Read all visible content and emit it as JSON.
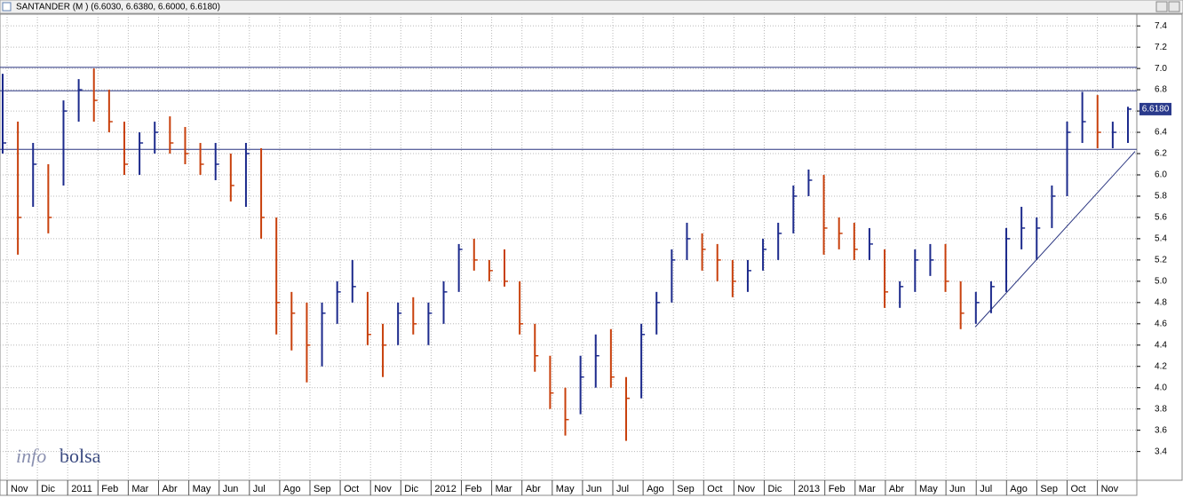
{
  "chart_data": {
    "type": "ohlc",
    "title": "SANTANDER (M ) (6.6030, 6.6380, 6.6000, 6.6180)",
    "logo": [
      "info",
      "bolsa"
    ],
    "categories": [
      "Nov",
      "Dic",
      "2011",
      "Feb",
      "Mar",
      "Abr",
      "May",
      "Jun",
      "Jul",
      "Ago",
      "Sep",
      "Oct",
      "Nov",
      "Dic",
      "2012",
      "Feb",
      "Mar",
      "Abr",
      "May",
      "Jun",
      "Jul",
      "Ago",
      "Sep",
      "Oct",
      "Nov",
      "Dic",
      "2013",
      "Feb",
      "Mar",
      "Abr",
      "May",
      "Jun",
      "Jul",
      "Ago",
      "Sep",
      "Oct",
      "Nov"
    ],
    "high": [
      6.95,
      6.5,
      6.3,
      6.1,
      6.7,
      6.9,
      7.0,
      6.8,
      6.5,
      6.4,
      6.5,
      6.55,
      6.45,
      6.3,
      6.3,
      6.2,
      6.3,
      6.25,
      5.6,
      4.9,
      4.8,
      4.8,
      5.0,
      5.2,
      4.9,
      4.6,
      4.8,
      4.85,
      4.8,
      5.0,
      5.35,
      5.4,
      5.2,
      5.3,
      5.0,
      4.6,
      4.3,
      4.0,
      4.3,
      4.5,
      4.55,
      4.1,
      4.6,
      4.9,
      5.3,
      5.55,
      5.45,
      5.35,
      5.2,
      5.2,
      5.4,
      5.55,
      5.9,
      6.05,
      6.0,
      5.6,
      5.55,
      5.5,
      5.3,
      5.0,
      5.3,
      5.35,
      5.35,
      5.0,
      4.9,
      5.0,
      5.5,
      5.7,
      5.6,
      5.9,
      6.5,
      6.78,
      6.75,
      6.5,
      6.64
    ],
    "low": [
      6.2,
      5.25,
      5.7,
      5.45,
      5.9,
      6.5,
      6.5,
      6.4,
      6.0,
      6.0,
      6.2,
      6.2,
      6.1,
      6.0,
      5.95,
      5.75,
      5.7,
      5.4,
      4.5,
      4.35,
      4.05,
      4.2,
      4.6,
      4.8,
      4.4,
      4.1,
      4.4,
      4.5,
      4.4,
      4.6,
      4.9,
      5.1,
      5.0,
      4.95,
      4.5,
      4.15,
      3.8,
      3.55,
      3.75,
      4.0,
      4.0,
      3.5,
      3.9,
      4.5,
      4.8,
      5.2,
      5.1,
      5.0,
      4.85,
      4.9,
      5.1,
      5.2,
      5.45,
      5.8,
      5.25,
      5.3,
      5.2,
      5.2,
      4.75,
      4.75,
      4.9,
      5.05,
      4.9,
      4.55,
      4.6,
      4.7,
      4.9,
      5.3,
      5.2,
      5.5,
      5.8,
      6.3,
      6.25,
      6.25,
      6.3
    ],
    "close": [
      6.3,
      5.6,
      6.1,
      5.6,
      6.6,
      6.8,
      6.7,
      6.5,
      6.1,
      6.3,
      6.4,
      6.3,
      6.2,
      6.1,
      6.1,
      5.9,
      6.2,
      5.6,
      4.8,
      4.7,
      4.4,
      4.7,
      4.9,
      4.95,
      4.5,
      4.4,
      4.7,
      4.6,
      4.7,
      4.9,
      5.3,
      5.2,
      5.1,
      5.0,
      4.6,
      4.3,
      3.95,
      3.7,
      4.1,
      4.3,
      4.1,
      3.9,
      4.5,
      4.8,
      5.2,
      5.4,
      5.3,
      5.2,
      5.0,
      5.1,
      5.3,
      5.45,
      5.8,
      5.95,
      5.5,
      5.45,
      5.3,
      5.35,
      4.9,
      4.95,
      5.2,
      5.2,
      5.0,
      4.7,
      4.8,
      4.95,
      5.4,
      5.5,
      5.5,
      5.8,
      6.4,
      6.5,
      6.4,
      6.4,
      6.618
    ],
    "up_color": "#1c2a8c",
    "down_color": "#c8400c",
    "last": {
      "value": 6.618,
      "label": "6.6180"
    },
    "hlines": [
      7.01,
      6.79,
      6.24
    ],
    "trendline": [
      4.57,
      6.22
    ],
    "ylim": [
      3.13,
      7.51
    ],
    "yticks": [
      3.4,
      3.6,
      3.8,
      {
        "value": 4,
        "label": "4.0"
      },
      4.2,
      4.4,
      4.6,
      4.8,
      {
        "value": 5,
        "label": "5.0"
      },
      5.2,
      5.4,
      5.6,
      5.8,
      {
        "value": 6,
        "label": "6.0"
      },
      6.2,
      6.4,
      6.6,
      6.8,
      {
        "value": 7,
        "label": "7.0"
      },
      7.2,
      7.4
    ],
    "grid": true
  }
}
